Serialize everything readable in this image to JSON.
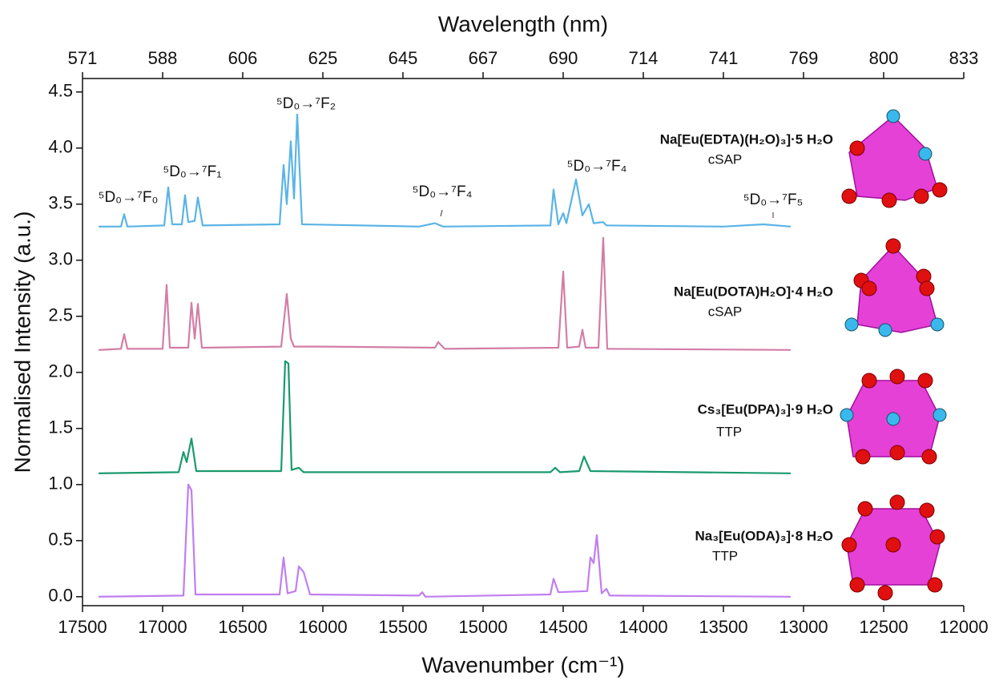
{
  "chart_data": {
    "type": "line",
    "xlabel": "Wavenumber (cm⁻¹)",
    "ylabel": "Normalised Intensity (a.u.)",
    "x2label": "Wavelength (nm)",
    "x2scale": "reciprocal",
    "xlim": [
      17500,
      12000
    ],
    "xticks": [
      17500,
      17000,
      16500,
      16000,
      15500,
      15000,
      14500,
      14000,
      13500,
      13000,
      12500,
      12000
    ],
    "x2lim": [
      571.43,
      833.33
    ],
    "x2ticks": [
      {
        "value": 571.43,
        "label": "571"
      },
      {
        "value": 588.24,
        "label": "588"
      },
      {
        "value": 606.06,
        "label": "606"
      },
      625,
      {
        "value": 645.16,
        "label": "645"
      },
      {
        "value": 666.67,
        "label": "667"
      },
      {
        "value": 689.66,
        "label": "690"
      },
      {
        "value": 714.29,
        "label": "714"
      },
      {
        "value": 740.74,
        "label": "741"
      },
      {
        "value": 769.23,
        "label": "769"
      },
      800,
      {
        "value": 833.33,
        "label": "833"
      }
    ],
    "ylim": [
      -0.08,
      4.62
    ],
    "yticks": [
      {
        "value": 0,
        "label": "0.0"
      },
      0.5,
      {
        "value": 1,
        "label": "1.0"
      },
      1.5,
      {
        "value": 2,
        "label": "2.0"
      },
      2.5,
      {
        "value": 3,
        "label": "3.0"
      },
      3.5,
      {
        "value": 4,
        "label": "4.0"
      },
      4.5
    ],
    "annotations": [
      "⁵D₀→⁷F₀",
      "⁵D₀→⁷F₁",
      "⁵D₀→⁷F₂",
      "⁵D₀→⁷F₄",
      "⁵D₀→⁷F₄",
      "⁵D₀→⁷F₅"
    ],
    "series": [
      {
        "name": "Na[Eu(EDTA)(H₂O)₃]·5 H₂O",
        "geometry": "cSAP",
        "color": "#5ab4e6",
        "x": [
          17400,
          17260,
          17240,
          17220,
          16990,
          16965,
          16940,
          16880,
          16860,
          16840,
          16800,
          16780,
          16750,
          16270,
          16245,
          16225,
          16200,
          16180,
          16160,
          16130,
          15400,
          15300,
          15250,
          14580,
          14560,
          14530,
          14500,
          14480,
          14420,
          14380,
          14340,
          14310,
          14250,
          14230,
          13500,
          13250,
          13080
        ],
        "values": [
          3.3,
          3.3,
          3.41,
          3.3,
          3.31,
          3.65,
          3.32,
          3.32,
          3.58,
          3.34,
          3.35,
          3.56,
          3.31,
          3.32,
          3.85,
          3.5,
          4.06,
          3.55,
          4.3,
          3.32,
          3.3,
          3.33,
          3.3,
          3.31,
          3.63,
          3.32,
          3.42,
          3.33,
          3.72,
          3.4,
          3.5,
          3.33,
          3.34,
          3.31,
          3.3,
          3.32,
          3.3
        ]
      },
      {
        "name": "Na[Eu(DOTA)H₂O]·4 H₂O",
        "geometry": "cSAP",
        "color": "#d27ea6",
        "x": [
          17400,
          17260,
          17240,
          17220,
          17000,
          16975,
          16955,
          16840,
          16820,
          16800,
          16780,
          16755,
          16260,
          16225,
          16200,
          16180,
          16000,
          15300,
          15280,
          15240,
          14530,
          14500,
          14475,
          14400,
          14380,
          14360,
          14280,
          14250,
          14225,
          13080
        ],
        "values": [
          2.2,
          2.21,
          2.34,
          2.21,
          2.21,
          2.78,
          2.22,
          2.22,
          2.62,
          2.3,
          2.61,
          2.22,
          2.23,
          2.7,
          2.3,
          2.23,
          2.23,
          2.22,
          2.27,
          2.21,
          2.22,
          2.9,
          2.22,
          2.23,
          2.38,
          2.22,
          2.22,
          3.2,
          2.21,
          2.2
        ]
      },
      {
        "name": "Cs₃[Eu(DPA)₃]·9 H₂O",
        "geometry": "TTP",
        "color": "#1a9a6c",
        "x": [
          17400,
          16900,
          16870,
          16850,
          16820,
          16790,
          16260,
          16235,
          16215,
          16195,
          16150,
          16120,
          14580,
          14550,
          14520,
          14400,
          14370,
          14330,
          13080
        ],
        "values": [
          1.1,
          1.11,
          1.29,
          1.2,
          1.41,
          1.12,
          1.12,
          2.1,
          2.08,
          1.13,
          1.15,
          1.11,
          1.11,
          1.15,
          1.11,
          1.12,
          1.25,
          1.12,
          1.1
        ]
      },
      {
        "name": "Na₃[Eu(ODA)₃]·8 H₂O",
        "geometry": "TTP",
        "color": "#c07ef0",
        "x": [
          17400,
          16870,
          16840,
          16820,
          16795,
          16270,
          16245,
          16220,
          16170,
          16150,
          16120,
          16080,
          15400,
          15380,
          15360,
          14580,
          14560,
          14530,
          14350,
          14330,
          14310,
          14290,
          14260,
          14230,
          14210,
          13080
        ],
        "values": [
          0,
          0.01,
          1.0,
          0.95,
          0.02,
          0.02,
          0.35,
          0.03,
          0.05,
          0.27,
          0.22,
          0.02,
          0.01,
          0.04,
          0,
          0.02,
          0.16,
          0.04,
          0.05,
          0.35,
          0.3,
          0.55,
          0.03,
          0.07,
          0.01,
          0
        ]
      }
    ]
  }
}
